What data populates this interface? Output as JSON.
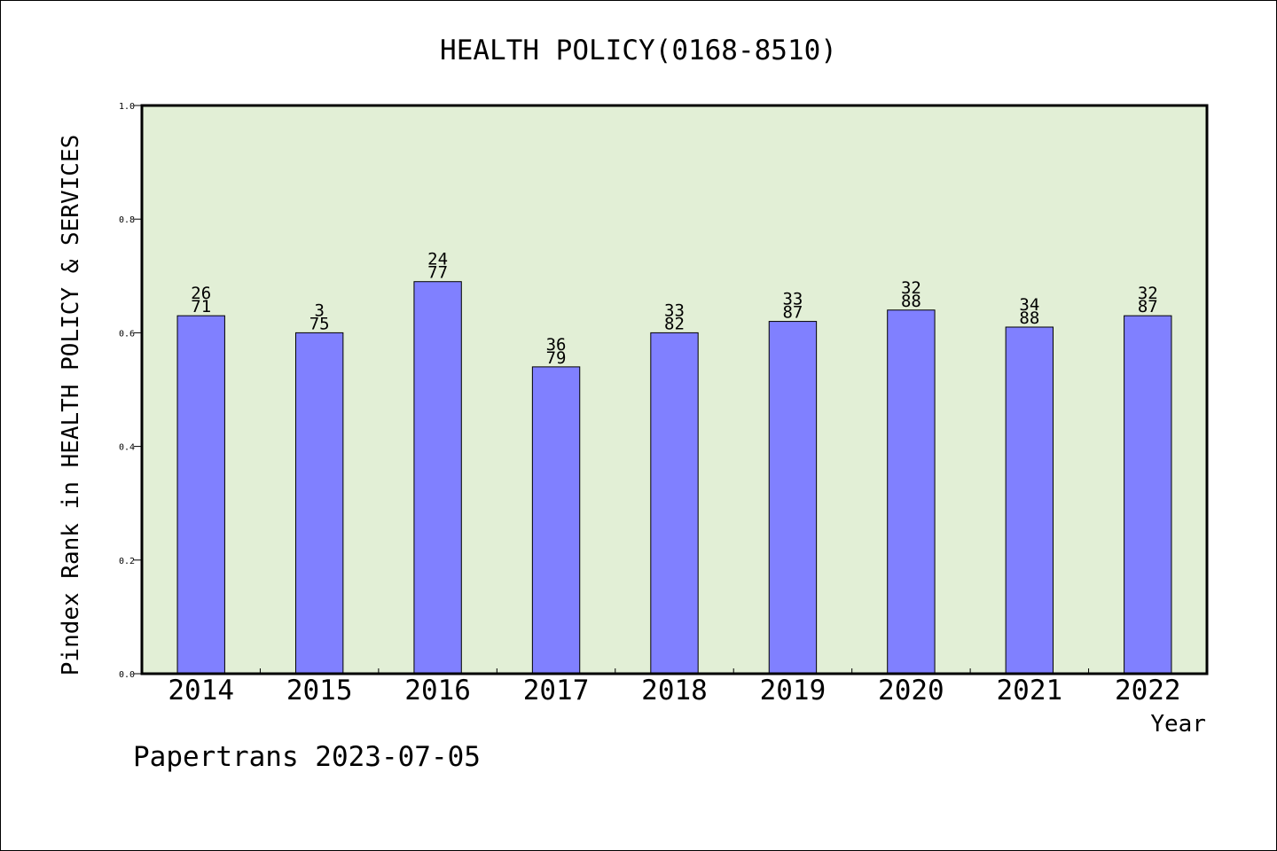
{
  "chart_data": {
    "type": "bar",
    "title": "HEALTH POLICY(0168-8510)",
    "xlabel": "Year",
    "ylabel": "Pindex Rank in HEALTH POLICY & SERVICES",
    "ylim": [
      0,
      1.0
    ],
    "yticks": [
      "0.0",
      "0.2",
      "0.4",
      "0.6",
      "0.8",
      "1.0"
    ],
    "categories": [
      "2014",
      "2015",
      "2016",
      "2017",
      "2018",
      "2019",
      "2020",
      "2021",
      "2022"
    ],
    "values": [
      0.63,
      0.6,
      0.69,
      0.54,
      0.6,
      0.62,
      0.64,
      0.61,
      0.63
    ],
    "label_top": [
      "26",
      "3",
      "24",
      "36",
      "33",
      "33",
      "32",
      "34",
      "32"
    ],
    "label_bottom": [
      "71",
      "75",
      "77",
      "79",
      "82",
      "87",
      "88",
      "88",
      "87"
    ],
    "grid": false,
    "colors": {
      "plot_bg": "#e2efd6",
      "bar": "#8080ff",
      "axis": "#000000"
    }
  },
  "footer": {
    "credit": "Papertrans 2023-07-05"
  }
}
